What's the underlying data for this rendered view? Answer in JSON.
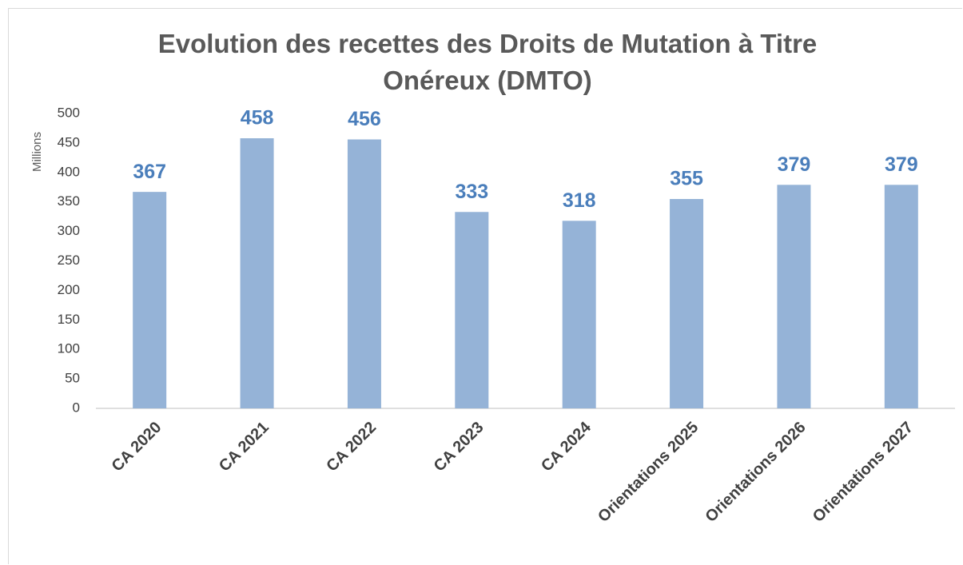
{
  "chart_data": {
    "type": "bar",
    "title": "Evolution des recettes des Droits de Mutation à Titre Onéreux (DMTO)",
    "ylabel": "Millions",
    "categories": [
      "CA 2020",
      "CA 2021",
      "CA 2022",
      "CA 2023",
      "CA 2024",
      "Orientations 2025",
      "Orientations 2026",
      "Orientations 2027"
    ],
    "values": [
      367,
      458,
      456,
      333,
      318,
      355,
      379,
      379
    ],
    "color": "#95b3d7",
    "label_color": "#4a7ebb",
    "ylim": [
      0,
      500
    ],
    "yticks": [
      0,
      50,
      100,
      150,
      200,
      250,
      300,
      350,
      400,
      450,
      500
    ],
    "grid": false
  }
}
